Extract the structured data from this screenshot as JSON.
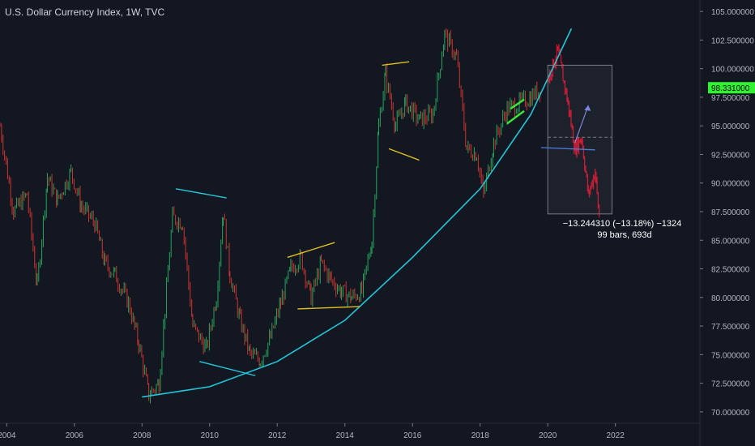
{
  "header": {
    "title": "U.S. Dollar Currency Index, 1W, TVC"
  },
  "colors": {
    "background": "#131722",
    "up": "#26a65b",
    "down": "#d0342c",
    "projection": "#d1142c",
    "curve": "#22c6d8",
    "cyan_lines": "#26c6da",
    "yellow_lines": "#e0c020",
    "green_lines": "#39e639",
    "price_tag": "#2ef32e",
    "measure_box": "#787b86",
    "arrow": "#7b86d8"
  },
  "price_tag": {
    "value": "98.331000"
  },
  "measure": {
    "line1": "−13.244310 (−13.18%) −1324",
    "line2": "99 bars, 693d"
  },
  "chart_data": {
    "type": "line",
    "title": "U.S. Dollar Currency Index, 1W, TVC",
    "xlim": [
      2003.8,
      2024.5
    ],
    "ylim": [
      69.0,
      106.0
    ],
    "y_ticks": [
      "70.000000",
      "72.500000",
      "75.000000",
      "77.500000",
      "80.000000",
      "82.500000",
      "85.000000",
      "87.500000",
      "90.000000",
      "92.500000",
      "95.000000",
      "97.500000",
      "100.000000",
      "102.500000",
      "105.000000"
    ],
    "x_ticks": [
      "2004",
      "2006",
      "2008",
      "2010",
      "2012",
      "2014",
      "2016",
      "2018",
      "2020",
      "2022"
    ],
    "last_price": 98.331,
    "series": [
      {
        "style": "candles",
        "x": [
          2003.8,
          2004.2,
          2004.6,
          2004.9,
          2005.2,
          2005.5,
          2005.9,
          2006.2,
          2006.6,
          2006.9,
          2007.2,
          2007.6,
          2007.9,
          2008.2,
          2008.5,
          2008.9,
          2009.2,
          2009.5,
          2009.9,
          2010.2,
          2010.4,
          2010.6,
          2010.9,
          2011.2,
          2011.5,
          2011.8,
          2012.1,
          2012.4,
          2012.7,
          2013.0,
          2013.3,
          2013.6,
          2013.9,
          2014.2,
          2014.5,
          2014.8,
          2015.0,
          2015.2,
          2015.5,
          2015.8,
          2016.2,
          2016.6,
          2016.95,
          2017.3,
          2017.6,
          2017.9,
          2018.1,
          2018.4,
          2018.8,
          2019.2,
          2019.5,
          2019.8
        ],
        "values": [
          95.0,
          87.5,
          89.0,
          81.0,
          90.5,
          88.5,
          91.0,
          88.0,
          86.5,
          83.0,
          82.0,
          79.5,
          76.0,
          71.5,
          72.5,
          87.0,
          86.5,
          77.5,
          75.5,
          80.0,
          87.5,
          82.0,
          78.0,
          75.0,
          74.5,
          76.5,
          79.5,
          82.5,
          83.5,
          80.0,
          83.0,
          81.5,
          80.5,
          80.0,
          80.5,
          85.0,
          95.0,
          99.5,
          95.0,
          97.0,
          95.5,
          96.0,
          103.0,
          101.0,
          93.0,
          92.5,
          89.0,
          93.5,
          96.5,
          97.0,
          97.5,
          98.3
        ]
      },
      {
        "style": "projection",
        "x": [
          2020.0,
          2020.3,
          2020.6,
          2020.8,
          2021.0,
          2021.2,
          2021.4,
          2021.55
        ],
        "values": [
          99.0,
          101.5,
          97.0,
          93.0,
          94.0,
          89.0,
          91.0,
          86.0
        ]
      }
    ],
    "annotations": {
      "support_curve": [
        [
          2008.0,
          71.3
        ],
        [
          2010.0,
          72.2
        ],
        [
          2012.0,
          74.4
        ],
        [
          2014.0,
          78.0
        ],
        [
          2016.0,
          83.5
        ],
        [
          2018.0,
          89.5
        ],
        [
          2019.5,
          96.0
        ],
        [
          2020.7,
          103.5
        ]
      ],
      "cyan_lines": [
        [
          [
            2009.0,
            89.5
          ],
          [
            2010.5,
            88.7
          ]
        ],
        [
          [
            2009.7,
            74.4
          ],
          [
            2011.3,
            73.2
          ]
        ],
        [
          [
            2011.3,
            73.2
          ],
          [
            2011.35,
            73.2
          ]
        ]
      ],
      "yellow_lines": [
        [
          [
            2012.3,
            83.5
          ],
          [
            2013.7,
            84.8
          ]
        ],
        [
          [
            2012.6,
            79.0
          ],
          [
            2014.45,
            79.2
          ]
        ],
        [
          [
            2015.1,
            100.3
          ],
          [
            2015.9,
            100.6
          ]
        ],
        [
          [
            2015.3,
            93.0
          ],
          [
            2016.2,
            92.0
          ]
        ]
      ],
      "green_lines": [
        [
          [
            2018.9,
            96.5
          ],
          [
            2019.3,
            97.3
          ]
        ],
        [
          [
            2018.8,
            95.2
          ],
          [
            2019.3,
            96.3
          ]
        ]
      ],
      "measure_box": {
        "x": [
          2020.0,
          2021.9
        ],
        "y": [
          87.3,
          100.3
        ]
      },
      "measure_hline": [
        [
          2020.0,
          94.0
        ],
        [
          2021.9,
          94.0
        ]
      ],
      "blue_hline": [
        [
          2019.8,
          93.1
        ],
        [
          2021.4,
          92.9
        ]
      ],
      "arrow": [
        [
          2020.8,
          93.5
        ],
        [
          2021.2,
          96.8
        ]
      ]
    }
  }
}
